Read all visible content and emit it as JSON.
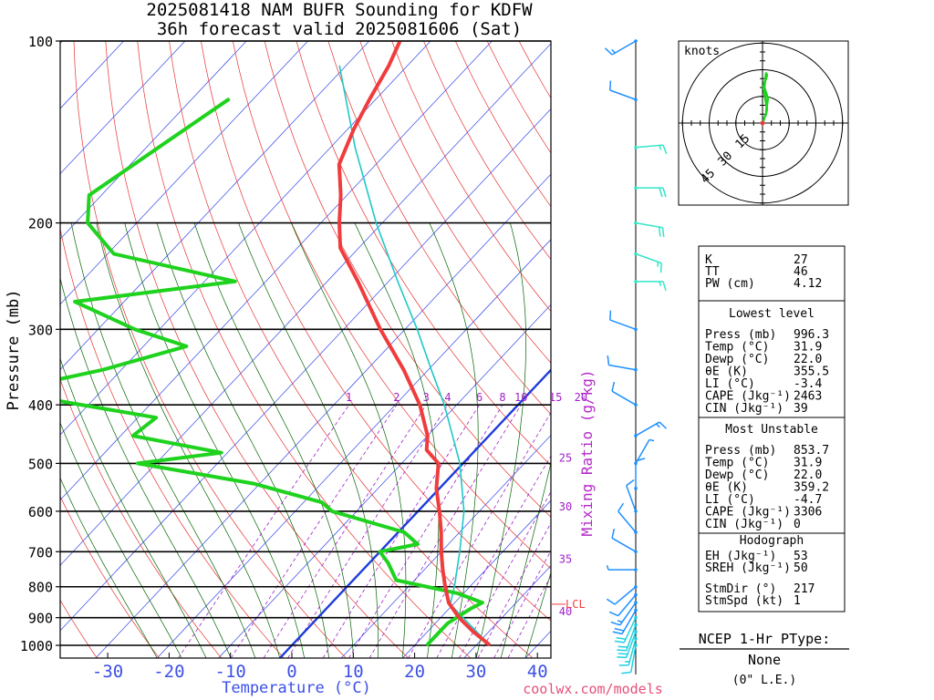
{
  "title_line1": "2025081418 NAM BUFR Sounding for KDFW",
  "title_line2": "36h forecast valid 2025081606 (Sat)",
  "footer": "coolwx.com/models",
  "colors": {
    "temperature": "#f03c3c",
    "dewpoint": "#1ed21e",
    "parcel": "#1ec8c8",
    "isotherm": "#3246e6",
    "dry_adiabat": "#e63232",
    "moist_adiabat": "#006400",
    "mixing_ratio": "#a020c8",
    "zero_isotherm": "#1e3cdc",
    "wind": "#1e90ff"
  },
  "chart_data": {
    "type": "skew-t",
    "xlabel": "Temperature (°C)",
    "ylabel": "Pressure (mb)",
    "mixing_ratio_label": "Mixing Ratio (g/kg)",
    "lcl_label": "LCL",
    "pressure_ticks": [
      "100",
      "200",
      "300",
      "400",
      "500",
      "600",
      "700",
      "800",
      "900",
      "1000"
    ],
    "temperature_ticks": [
      "-30",
      "-20",
      "-10",
      "0",
      "10",
      "20",
      "30",
      "40"
    ],
    "mixing_ratio_ticks": [
      "1",
      "2",
      "3",
      "4",
      "6",
      "8",
      "10",
      "15",
      "20",
      "25",
      "30",
      "35",
      "40"
    ],
    "pressure_range_mb": [
      100,
      1050
    ],
    "temperature_range_c": [
      -40,
      40
    ],
    "lcl_pressure_mb": 855,
    "series": [
      {
        "name": "temperature",
        "points": [
          {
            "p": 100,
            "t": -75
          },
          {
            "p": 110,
            "t": -73
          },
          {
            "p": 125,
            "t": -71
          },
          {
            "p": 140,
            "t": -69
          },
          {
            "p": 160,
            "t": -66
          },
          {
            "p": 180,
            "t": -61
          },
          {
            "p": 200,
            "t": -57
          },
          {
            "p": 220,
            "t": -53
          },
          {
            "p": 250,
            "t": -45
          },
          {
            "p": 300,
            "t": -34
          },
          {
            "p": 350,
            "t": -24
          },
          {
            "p": 400,
            "t": -16
          },
          {
            "p": 450,
            "t": -10
          },
          {
            "p": 475,
            "t": -8
          },
          {
            "p": 500,
            "t": -4
          },
          {
            "p": 550,
            "t": -0.5
          },
          {
            "p": 600,
            "t": 3.5
          },
          {
            "p": 650,
            "t": 7
          },
          {
            "p": 700,
            "t": 10
          },
          {
            "p": 750,
            "t": 13
          },
          {
            "p": 800,
            "t": 16
          },
          {
            "p": 850,
            "t": 19
          },
          {
            "p": 900,
            "t": 23
          },
          {
            "p": 950,
            "t": 27.5
          },
          {
            "p": 996,
            "t": 31.9
          }
        ]
      },
      {
        "name": "dewpoint",
        "points": [
          {
            "p": 125,
            "t": -94
          },
          {
            "p": 150,
            "t": -98
          },
          {
            "p": 180,
            "t": -102
          },
          {
            "p": 200,
            "t": -98
          },
          {
            "p": 225,
            "t": -89
          },
          {
            "p": 250,
            "t": -65
          },
          {
            "p": 270,
            "t": -88
          },
          {
            "p": 300,
            "t": -74
          },
          {
            "p": 320,
            "t": -63
          },
          {
            "p": 350,
            "t": -73
          },
          {
            "p": 380,
            "t": -86
          },
          {
            "p": 420,
            "t": -57
          },
          {
            "p": 450,
            "t": -58
          },
          {
            "p": 480,
            "t": -41
          },
          {
            "p": 500,
            "t": -53
          },
          {
            "p": 540,
            "t": -31
          },
          {
            "p": 580,
            "t": -17
          },
          {
            "p": 600,
            "t": -14
          },
          {
            "p": 650,
            "t": 1
          },
          {
            "p": 680,
            "t": 5
          },
          {
            "p": 700,
            "t": 0
          },
          {
            "p": 730,
            "t": 3
          },
          {
            "p": 780,
            "t": 7
          },
          {
            "p": 820,
            "t": 19
          },
          {
            "p": 850,
            "t": 24.5
          },
          {
            "p": 870,
            "t": 23.5
          },
          {
            "p": 920,
            "t": 22
          },
          {
            "p": 996,
            "t": 22
          }
        ]
      },
      {
        "name": "parcel",
        "points": [
          {
            "p": 996,
            "t": 31.9
          },
          {
            "p": 855,
            "t": 19.5
          },
          {
            "p": 800,
            "t": 17.5
          },
          {
            "p": 700,
            "t": 13
          },
          {
            "p": 600,
            "t": 7.5
          },
          {
            "p": 500,
            "t": -0.5
          },
          {
            "p": 400,
            "t": -12
          },
          {
            "p": 350,
            "t": -19.5
          },
          {
            "p": 300,
            "t": -28
          },
          {
            "p": 250,
            "t": -38.5
          },
          {
            "p": 200,
            "t": -51
          },
          {
            "p": 150,
            "t": -66
          },
          {
            "p": 110,
            "t": -81
          }
        ]
      }
    ],
    "winds": [
      {
        "p": 1000,
        "dir": 190,
        "spd": 10
      },
      {
        "p": 975,
        "dir": 195,
        "spd": 15
      },
      {
        "p": 950,
        "dir": 200,
        "spd": 20
      },
      {
        "p": 925,
        "dir": 200,
        "spd": 20
      },
      {
        "p": 900,
        "dir": 205,
        "spd": 20
      },
      {
        "p": 875,
        "dir": 210,
        "spd": 20
      },
      {
        "p": 850,
        "dir": 215,
        "spd": 15
      },
      {
        "p": 825,
        "dir": 220,
        "spd": 10
      },
      {
        "p": 800,
        "dir": 230,
        "spd": 10
      },
      {
        "p": 750,
        "dir": 270,
        "spd": 5
      },
      {
        "p": 700,
        "dir": 300,
        "spd": 10
      },
      {
        "p": 650,
        "dir": 320,
        "spd": 10
      },
      {
        "p": 600,
        "dir": 340,
        "spd": 10
      },
      {
        "p": 550,
        "dir": 0,
        "spd": 10
      },
      {
        "p": 500,
        "dir": 30,
        "spd": 5
      },
      {
        "p": 450,
        "dir": 60,
        "spd": 15
      },
      {
        "p": 400,
        "dir": 300,
        "spd": 10
      },
      {
        "p": 350,
        "dir": 280,
        "spd": 10
      },
      {
        "p": 300,
        "dir": 290,
        "spd": 10
      },
      {
        "p": 250,
        "dir": 90,
        "spd": 15
      },
      {
        "p": 225,
        "dir": 110,
        "spd": 15
      },
      {
        "p": 200,
        "dir": 100,
        "spd": 20
      },
      {
        "p": 175,
        "dir": 90,
        "spd": 20
      },
      {
        "p": 150,
        "dir": 85,
        "spd": 15
      },
      {
        "p": 125,
        "dir": 290,
        "spd": 10
      },
      {
        "p": 100,
        "dir": 240,
        "spd": 15
      }
    ],
    "hodograph": {
      "label": "knots",
      "ring_labels": [
        "15",
        "30",
        "45"
      ],
      "u": [
        0.5,
        1,
        2,
        2.5,
        2,
        1.5,
        1,
        0.5,
        1,
        2,
        2.5,
        2,
        1.5,
        1,
        2,
        3,
        2.5,
        2
      ],
      "v": [
        1,
        3,
        5,
        8,
        11,
        14,
        17,
        20,
        23,
        25,
        27,
        28,
        24,
        20,
        17,
        14,
        10,
        6
      ]
    }
  },
  "indices": {
    "top": [
      {
        "label": "K",
        "value": "27"
      },
      {
        "label": "TT",
        "value": "46"
      },
      {
        "label": "PW (cm)",
        "value": "4.12"
      }
    ],
    "lowest_level": {
      "header": "Lowest level",
      "rows": [
        {
          "label": "Press (mb)",
          "value": "996.3"
        },
        {
          "label": "Temp (°C)",
          "value": "31.9"
        },
        {
          "label": "Dewp (°C)",
          "value": "22.0"
        },
        {
          "label": "θE (K)",
          "value": "355.5"
        },
        {
          "label": "LI (°C)",
          "value": "-3.4"
        },
        {
          "label": "CAPE (Jkg⁻¹)",
          "value": "2463"
        },
        {
          "label": "CIN (Jkg⁻¹)",
          "value": "39"
        }
      ]
    },
    "most_unstable": {
      "header": "Most Unstable",
      "rows": [
        {
          "label": "Press (mb)",
          "value": "853.7"
        },
        {
          "label": "Temp (°C)",
          "value": "31.9"
        },
        {
          "label": "Dewp (°C)",
          "value": "22.0"
        },
        {
          "label": "θE (K)",
          "value": "359.2"
        },
        {
          "label": "LI (°C)",
          "value": "-4.7"
        },
        {
          "label": "CAPE (Jkg⁻¹)",
          "value": "3306"
        },
        {
          "label": "CIN (Jkg⁻¹)",
          "value": "0"
        }
      ]
    },
    "hodograph_box": {
      "header": "Hodograph",
      "rows": [
        {
          "label": "EH (Jkg⁻¹)",
          "value": "53"
        },
        {
          "label": "SREH (Jkg⁻¹)",
          "value": "50"
        }
      ],
      "rows2": [
        {
          "label": "StmDir (°)",
          "value": "217"
        },
        {
          "label": "StmSpd (kt)",
          "value": "1"
        }
      ]
    }
  },
  "ptype": {
    "header": "NCEP 1-Hr PType:",
    "value": "None",
    "amount": "(0\" L.E.)"
  }
}
